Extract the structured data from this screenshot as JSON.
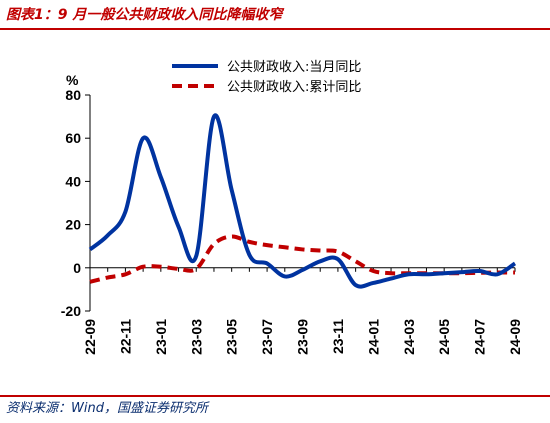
{
  "header": {
    "title": "图表1：9 月一般公共财政收入同比降幅收窄"
  },
  "footer": {
    "source": "资料来源：Wind，国盛证券研究所"
  },
  "chart_data": {
    "type": "line",
    "title": "图表1：9 月一般公共财政收入同比降幅收窄",
    "ylabel": "%",
    "xlabel": "",
    "ylim": [
      -20,
      80
    ],
    "yticks": [
      -20,
      0,
      20,
      40,
      60,
      80
    ],
    "grid": false,
    "legend_position": "top",
    "x": [
      "22-09",
      "22-10",
      "22-11",
      "22-12",
      "23-01",
      "23-02",
      "23-03",
      "23-04",
      "23-05",
      "23-06",
      "23-07",
      "23-08",
      "23-09",
      "23-10",
      "23-11",
      "23-12",
      "24-01",
      "24-02",
      "24-03",
      "24-04",
      "24-05",
      "24-06",
      "24-07",
      "24-08",
      "24-09"
    ],
    "xtick_labels": [
      "22-09",
      "22-11",
      "23-01",
      "23-03",
      "23-05",
      "23-07",
      "23-09",
      "23-11",
      "24-01",
      "24-03",
      "24-05",
      "24-07",
      "24-09"
    ],
    "series": [
      {
        "name": "公共财政收入:当月同比",
        "color": "#0033a0",
        "style": "solid",
        "values": [
          8.5,
          15,
          26,
          60,
          42,
          19,
          5.5,
          70,
          36,
          6,
          2,
          -4,
          -1,
          3,
          4,
          -8,
          -7,
          -5,
          -3,
          -3,
          -2.5,
          -2,
          -1.5,
          -3,
          2
        ]
      },
      {
        "name": "公共财政收入:累计同比",
        "color": "#c00000",
        "style": "dashed",
        "values": [
          -6.5,
          -4.5,
          -3,
          0.5,
          0.5,
          -0.5,
          -0.5,
          11,
          14.5,
          12,
          10.5,
          9.5,
          8.5,
          8,
          7.5,
          3,
          -1.5,
          -2.5,
          -2.5,
          -2.5,
          -2.5,
          -2.5,
          -2.3,
          -2.2,
          -2.2
        ]
      }
    ]
  }
}
